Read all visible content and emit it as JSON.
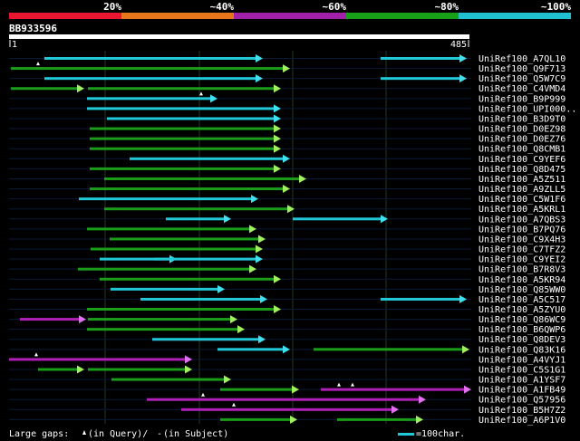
{
  "colors": {
    "bg": "#000000",
    "grid": "#1f3a1f",
    "row_line": "#0a1a3a",
    "query_bar": "#ffffff",
    "band_red": "#e8162e",
    "band_orange": "#e8761a",
    "band_purple": "#a020a8",
    "band_green": "#18a018",
    "band_cyan": "#20c0d0",
    "hit_cyan": "#20c8d8",
    "hit_green": "#1a9e1a",
    "hit_magenta": "#b020b8",
    "head_cyan": "#40e0f0",
    "head_green": "#a0f060",
    "head_magenta": "#e070f0"
  },
  "legend_scale": {
    "labels": [
      "20%",
      "~40%",
      "~60%",
      "~80%",
      "~100%"
    ]
  },
  "query": {
    "id": "BB933596",
    "start_label": "1",
    "end_label": "485",
    "length": 485
  },
  "hits": [
    {
      "label": "UniRef100_A7QL10",
      "segs": [
        [
          49,
          290,
          "c"
        ],
        [
          420,
          515,
          "c"
        ]
      ],
      "marks": []
    },
    {
      "label": "UniRef100_Q9F713",
      "segs": [
        [
          12,
          320,
          "g"
        ]
      ],
      "marks": [
        42
      ]
    },
    {
      "label": "UniRef100_Q5W7C9",
      "segs": [
        [
          49,
          290,
          "c"
        ],
        [
          420,
          515,
          "c"
        ]
      ],
      "marks": []
    },
    {
      "label": "UniRef100_C4VMD4",
      "segs": [
        [
          12,
          93,
          "g"
        ],
        [
          97,
          310,
          "g"
        ]
      ],
      "marks": []
    },
    {
      "label": "UniRef100_B9P999",
      "segs": [
        [
          96,
          240,
          "c"
        ]
      ],
      "marks": [
        222
      ]
    },
    {
      "label": "UniRef100_UPI000..",
      "segs": [
        [
          96,
          310,
          "c"
        ]
      ],
      "marks": []
    },
    {
      "label": "UniRef100_B3D9T0",
      "segs": [
        [
          118,
          310,
          "c"
        ]
      ],
      "marks": []
    },
    {
      "label": "UniRef100_D0EZ98",
      "segs": [
        [
          99,
          310,
          "g"
        ]
      ],
      "marks": []
    },
    {
      "label": "UniRef100_D0EZ76",
      "segs": [
        [
          99,
          310,
          "g"
        ]
      ],
      "marks": []
    },
    {
      "label": "UniRef100_Q8CMB1",
      "segs": [
        [
          99,
          310,
          "g"
        ]
      ],
      "marks": []
    },
    {
      "label": "UniRef100_C9YEF6",
      "segs": [
        [
          143,
          320,
          "c"
        ]
      ],
      "marks": []
    },
    {
      "label": "UniRef100_Q8D475",
      "segs": [
        [
          99,
          310,
          "g"
        ]
      ],
      "marks": []
    },
    {
      "label": "UniRef100_A5Z511",
      "segs": [
        [
          115,
          338,
          "g"
        ]
      ],
      "marks": []
    },
    {
      "label": "UniRef100_A9ZLL5",
      "segs": [
        [
          99,
          320,
          "g"
        ]
      ],
      "marks": []
    },
    {
      "label": "UniRef100_C5W1F6",
      "segs": [
        [
          87,
          285,
          "c"
        ]
      ],
      "marks": []
    },
    {
      "label": "UniRef100_A5KRL1",
      "segs": [
        [
          115,
          325,
          "g"
        ]
      ],
      "marks": []
    },
    {
      "label": "UniRef100_A7QBS3",
      "segs": [
        [
          183,
          255,
          "c"
        ],
        [
          323,
          428,
          "c"
        ]
      ],
      "marks": []
    },
    {
      "label": "UniRef100_B7PQ76",
      "segs": [
        [
          96,
          283,
          "g"
        ]
      ],
      "marks": []
    },
    {
      "label": "UniRef100_C9X4H3",
      "segs": [
        [
          121,
          293,
          "g"
        ]
      ],
      "marks": []
    },
    {
      "label": "UniRef100_C7TFZ2",
      "segs": [
        [
          100,
          290,
          "g"
        ]
      ],
      "marks": []
    },
    {
      "label": "UniRef100_C9YEI2",
      "segs": [
        [
          110,
          195,
          "c"
        ],
        [
          170,
          290,
          "c"
        ]
      ],
      "marks": []
    },
    {
      "label": "UniRef100_B7R8V3",
      "segs": [
        [
          86,
          283,
          "g"
        ]
      ],
      "marks": []
    },
    {
      "label": "UniRef100_A5KR94",
      "segs": [
        [
          110,
          310,
          "g"
        ]
      ],
      "marks": []
    },
    {
      "label": "UniRef100_Q85WW0",
      "segs": [
        [
          122,
          248,
          "c"
        ]
      ],
      "marks": []
    },
    {
      "label": "UniRef100_A5C517",
      "segs": [
        [
          155,
          295,
          "c"
        ],
        [
          420,
          515,
          "c"
        ]
      ],
      "marks": []
    },
    {
      "label": "UniRef100_A5ZYU0",
      "segs": [
        [
          96,
          310,
          "g"
        ]
      ],
      "marks": []
    },
    {
      "label": "UniRef100_Q86WC9",
      "segs": [
        [
          22,
          95,
          "m"
        ],
        [
          97,
          262,
          "g"
        ]
      ],
      "marks": []
    },
    {
      "label": "UniRef100_B6QWP6",
      "segs": [
        [
          96,
          270,
          "g"
        ]
      ],
      "marks": []
    },
    {
      "label": "UniRef100_Q8DEV3",
      "segs": [
        [
          168,
          293,
          "c"
        ]
      ],
      "marks": []
    },
    {
      "label": "UniRef100_Q83K16",
      "segs": [
        [
          240,
          320,
          "c"
        ],
        [
          346,
          518,
          "g"
        ]
      ],
      "marks": []
    },
    {
      "label": "UniRef100_A4VYJ1",
      "segs": [
        [
          10,
          212,
          "m"
        ]
      ],
      "marks": [
        40
      ]
    },
    {
      "label": "UniRef100_C5S1G1",
      "segs": [
        [
          42,
          93,
          "g"
        ],
        [
          97,
          212,
          "g"
        ]
      ],
      "marks": []
    },
    {
      "label": "UniRef100_A1YSF7",
      "segs": [
        [
          123,
          255,
          "g"
        ]
      ],
      "marks": []
    },
    {
      "label": "UniRef100_A1FB49",
      "segs": [
        [
          243,
          330,
          "g"
        ],
        [
          354,
          520,
          "m"
        ]
      ],
      "marks": [
        374,
        389
      ]
    },
    {
      "label": "UniRef100_Q57956",
      "segs": [
        [
          162,
          470,
          "m"
        ]
      ],
      "marks": [
        224
      ]
    },
    {
      "label": "UniRef100_B5H7Z2",
      "segs": [
        [
          200,
          440,
          "m"
        ]
      ],
      "marks": [
        258
      ]
    },
    {
      "label": "UniRef100_A6P1V0",
      "segs": [
        [
          243,
          328,
          "g"
        ],
        [
          372,
          467,
          "g"
        ]
      ],
      "marks": []
    }
  ],
  "footer": {
    "gaps_prefix": "Large gaps: ",
    "gaps_query": "(in Query)/",
    "gaps_dash": "-",
    "gaps_subject": " (in Subject)",
    "scale_text": "=100char."
  }
}
